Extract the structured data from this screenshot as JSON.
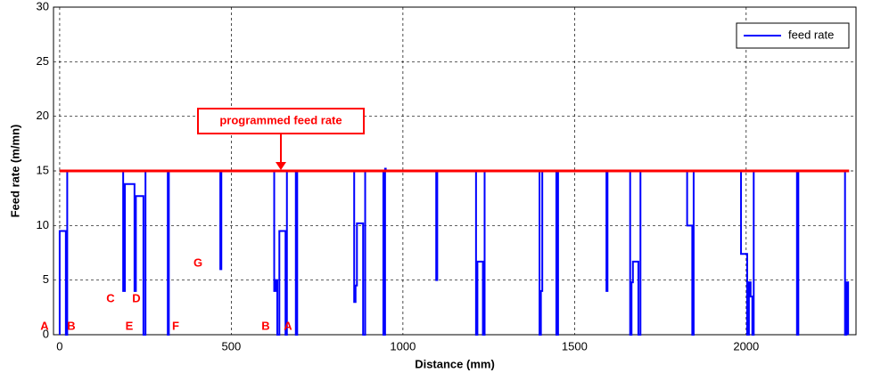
{
  "chart_data": {
    "type": "line",
    "x_label": "Distance (mm)",
    "y_label": "Feed rate (m/mn)",
    "xlim": [
      -18,
      2320
    ],
    "ylim": [
      0,
      30
    ],
    "xticks": [
      0,
      500,
      1000,
      1500,
      2000
    ],
    "yticks": [
      0,
      5,
      10,
      15,
      20,
      25,
      30
    ],
    "grid": true,
    "legend": "top-right",
    "x": [
      0,
      0,
      18,
      18,
      22,
      22,
      185,
      185,
      190,
      190,
      218,
      218,
      222,
      222,
      244,
      244,
      250,
      250,
      315,
      315,
      318,
      318,
      468,
      468,
      471,
      471,
      625,
      625,
      630,
      630,
      634,
      634,
      640,
      640,
      658,
      658,
      662,
      662,
      688,
      688,
      692,
      692,
      858,
      858,
      862,
      862,
      866,
      866,
      884,
      884,
      890,
      890,
      943,
      943,
      948,
      948,
      950,
      950,
      1097,
      1097,
      1100,
      1100,
      1213,
      1213,
      1217,
      1217,
      1233,
      1233,
      1238,
      1238,
      1398,
      1398,
      1402,
      1402,
      1406,
      1406,
      1447,
      1447,
      1452,
      1452,
      1593,
      1593,
      1596,
      1596,
      1662,
      1662,
      1666,
      1666,
      1670,
      1670,
      1686,
      1686,
      1692,
      1692,
      1828,
      1828,
      1843,
      1843,
      1847,
      1847,
      1985,
      1985,
      2003,
      2003,
      2008,
      2008,
      2013,
      2013,
      2018,
      2018,
      2022,
      2022,
      2148,
      2148,
      2152,
      2152,
      2288,
      2288,
      2292,
      2292,
      2297,
      2297
    ],
    "series": [
      {
        "name": "feed rate",
        "color": "#0000ff",
        "values": [
          0,
          9.5,
          9.5,
          0,
          0,
          15,
          15,
          4,
          4,
          13.8,
          13.8,
          4,
          4,
          12.7,
          12.7,
          0,
          0,
          15,
          15,
          0,
          0,
          15,
          15,
          6,
          6,
          15,
          15,
          4,
          4,
          5,
          5,
          0,
          0,
          9.5,
          9.5,
          0,
          0,
          15,
          15,
          0,
          0,
          15,
          15,
          3,
          3,
          4.5,
          4.5,
          10.2,
          10.2,
          0,
          0,
          15,
          15,
          0,
          0,
          15.2,
          15.2,
          15,
          15,
          5,
          5,
          15,
          15,
          0,
          0,
          6.7,
          6.7,
          0,
          0,
          15,
          15,
          0,
          0,
          4,
          4,
          15,
          15,
          0,
          0,
          15,
          15,
          4,
          4,
          15,
          15,
          0,
          0,
          4.8,
          4.8,
          6.7,
          6.7,
          0,
          0,
          15,
          15,
          10,
          10,
          0,
          0,
          15,
          15,
          7.4,
          7.4,
          0,
          0,
          4.8,
          4.8,
          3.5,
          3.5,
          0,
          0,
          15,
          15,
          0,
          0,
          15,
          15,
          0,
          0,
          4.8,
          4.8,
          0
        ]
      }
    ],
    "reference_line": {
      "label": "programmed feed rate",
      "value": 15,
      "color": "#ff0000",
      "x": [
        0,
        2300
      ]
    },
    "annotations": [
      "A",
      "B",
      "C",
      "D",
      "E",
      "F",
      "G",
      "B",
      "A"
    ]
  }
}
